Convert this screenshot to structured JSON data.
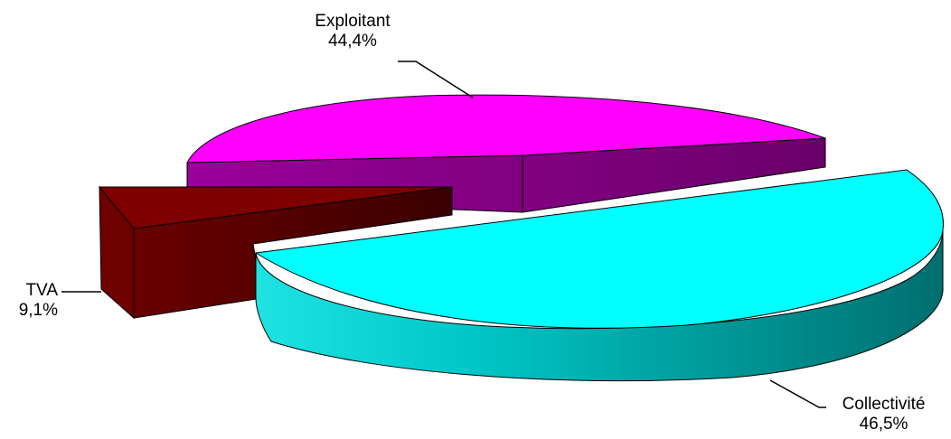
{
  "chart_data": {
    "type": "pie",
    "title": "",
    "slices": [
      {
        "name": "Exploitant",
        "value": 44.4,
        "label": "44,4%",
        "color": "#ff00ff",
        "side_color": "#7a007a"
      },
      {
        "name": "TVA",
        "value": 9.1,
        "label": "9,1%",
        "color": "#800000",
        "side_color": "#3d0000"
      },
      {
        "name": "Collectivité",
        "value": 46.5,
        "label": "46,5%",
        "color": "#00ffff",
        "side_color": "#008080"
      }
    ],
    "style": "3d-exploded"
  }
}
